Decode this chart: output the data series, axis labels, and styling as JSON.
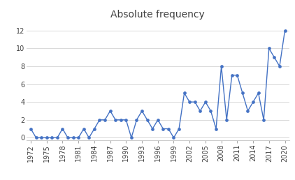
{
  "years": [
    1972,
    1973,
    1974,
    1975,
    1976,
    1977,
    1978,
    1979,
    1980,
    1981,
    1982,
    1983,
    1984,
    1985,
    1986,
    1987,
    1988,
    1989,
    1990,
    1991,
    1992,
    1993,
    1994,
    1995,
    1996,
    1997,
    1998,
    1999,
    2000,
    2001,
    2002,
    2003,
    2004,
    2005,
    2006,
    2007,
    2008,
    2009,
    2010,
    2011,
    2012,
    2013,
    2014,
    2015,
    2016,
    2017,
    2018,
    2019,
    2020
  ],
  "values": [
    1,
    0,
    0,
    0,
    0,
    0,
    1,
    0,
    0,
    0,
    1,
    0,
    1,
    2,
    2,
    3,
    2,
    2,
    2,
    0,
    2,
    3,
    2,
    1,
    2,
    1,
    1,
    0,
    1,
    5,
    4,
    4,
    3,
    4,
    3,
    1,
    8,
    2,
    7,
    7,
    5,
    3,
    4,
    5,
    2,
    10,
    9,
    8,
    12
  ],
  "title": "Absolute frequency",
  "line_color": "#4472c4",
  "marker_color": "#4472c4",
  "ylim": [
    -0.3,
    13
  ],
  "yticks": [
    0,
    2,
    4,
    6,
    8,
    10,
    12
  ],
  "xtick_years": [
    1972,
    1975,
    1978,
    1981,
    1984,
    1987,
    1990,
    1993,
    1996,
    1999,
    2002,
    2005,
    2008,
    2011,
    2014,
    2017,
    2020
  ],
  "background_color": "#ffffff",
  "title_fontsize": 10,
  "tick_fontsize": 7
}
